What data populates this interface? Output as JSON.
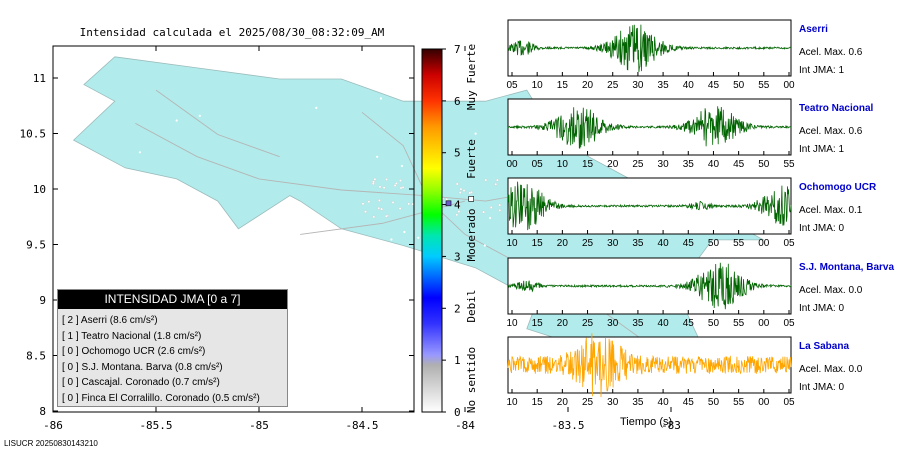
{
  "title": "Intensidad calculada el 2025/08/30_08:32:09_AM",
  "footer_id": "LISUCR 20250830143210",
  "map": {
    "x_ticks": [
      "-86",
      "-85.5",
      "-85",
      "-84.5",
      "-84",
      "-83.5",
      "-83"
    ],
    "y_ticks": [
      "11",
      "10.5",
      "10",
      "9.5",
      "9",
      "8.5",
      "8"
    ],
    "land_color": "#b2ebeb"
  },
  "legend": {
    "title": "INTENSIDAD JMA [0 a 7]",
    "items": [
      {
        "jma": "[ 2 ]",
        "label": "Aserri (8.6 cm/s²)"
      },
      {
        "jma": "[ 1 ]",
        "label": "Teatro Nacional (1.8 cm/s²)"
      },
      {
        "jma": "[ 0 ]",
        "label": "Ochomogo UCR (2.6 cm/s²)"
      },
      {
        "jma": "[ 0 ]",
        "label": "S.J. Montana. Barva (0.8 cm/s²)"
      },
      {
        "jma": "[ 0 ]",
        "label": "Cascajal. Coronado (0.7 cm/s²)"
      },
      {
        "jma": "[ 0 ]",
        "label": "Finca El Corralillo. Coronado (0.5 cm/s²)"
      }
    ]
  },
  "colorbar": {
    "ticks": [
      "0",
      "1",
      "2",
      "3",
      "4",
      "5",
      "6",
      "7"
    ],
    "labels": [
      "No sentido",
      "Debil",
      "Moderado",
      "Fuerte",
      "Muy Fuerte"
    ]
  },
  "chart_data": [
    {
      "type": "line",
      "station": "Aserri",
      "acc_label": "Acel. Max. 0.6",
      "int_label": "Int JMA: 1",
      "color": "#006400",
      "x_ticks": [
        "05",
        "10",
        "15",
        "20",
        "25",
        "30",
        "35",
        "40",
        "45",
        "50",
        "55",
        "00"
      ],
      "bursts": [
        {
          "t": 0.05,
          "amp": 0.3
        },
        {
          "t": 0.45,
          "amp": 0.95
        }
      ]
    },
    {
      "type": "line",
      "station": "Teatro Nacional",
      "acc_label": "Acel. Max. 0.6",
      "int_label": "Int JMA: 1",
      "color": "#006400",
      "x_ticks": [
        "00",
        "05",
        "10",
        "15",
        "20",
        "25",
        "30",
        "35",
        "40",
        "45",
        "50",
        "55"
      ],
      "bursts": [
        {
          "t": 0.25,
          "amp": 0.9
        },
        {
          "t": 0.73,
          "amp": 0.85
        }
      ]
    },
    {
      "type": "line",
      "station": "Ochomogo UCR",
      "acc_label": "Acel. Max. 0.1",
      "int_label": "Int JMA: 0",
      "color": "#006400",
      "x_ticks": [
        "10",
        "15",
        "20",
        "25",
        "30",
        "35",
        "40",
        "45",
        "50",
        "55",
        "00",
        "05"
      ],
      "bursts": [
        {
          "t": 0.05,
          "amp": 1.0
        },
        {
          "t": 0.68,
          "amp": 0.15
        },
        {
          "t": 0.98,
          "amp": 0.8
        }
      ]
    },
    {
      "type": "line",
      "station": "S.J. Montana, Barva",
      "acc_label": "Acel. Max. 0.0",
      "int_label": "Int JMA: 0",
      "color": "#006400",
      "x_ticks": [
        "10",
        "15",
        "20",
        "25",
        "30",
        "35",
        "40",
        "45",
        "50",
        "55",
        "00",
        "05"
      ],
      "bursts": [
        {
          "t": 0.07,
          "amp": 0.2
        },
        {
          "t": 0.75,
          "amp": 1.0
        }
      ]
    },
    {
      "type": "line",
      "station": "La Sabana",
      "acc_label": "Acel. Max. 0.0",
      "int_label": "Int JMA: 0",
      "color": "#ffa500",
      "x_ticks": [
        "10",
        "15",
        "20",
        "25",
        "30",
        "35",
        "40",
        "45",
        "50",
        "55",
        "00",
        "05"
      ],
      "bursts": [
        {
          "t": 0.32,
          "amp": 1.0
        }
      ]
    }
  ],
  "x_axis_title": "Tiempo (s)"
}
